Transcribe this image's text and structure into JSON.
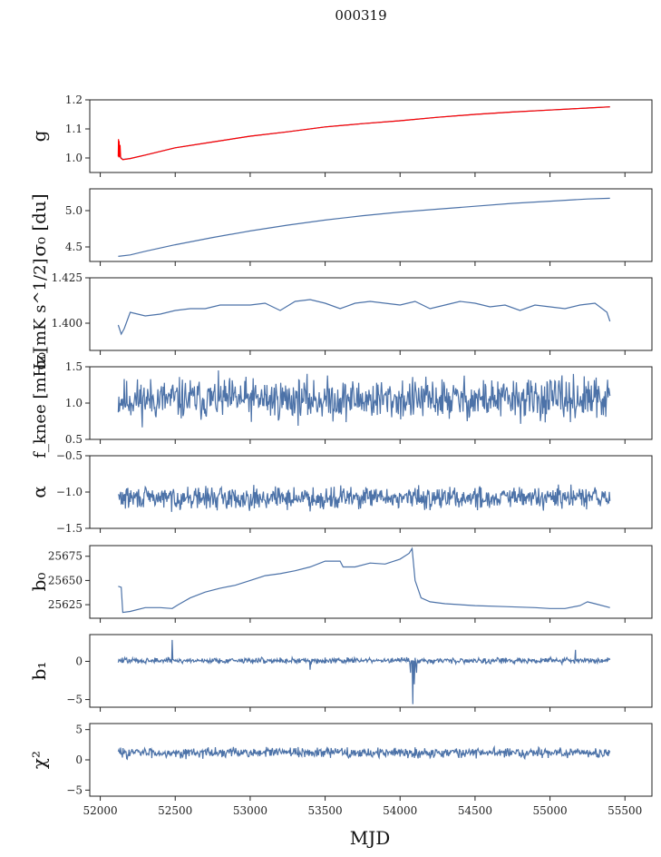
{
  "figure": {
    "title": "000319",
    "xlabel": "MJD"
  },
  "chart_data": [
    {
      "type": "line",
      "panel": "g",
      "ylabel": "g",
      "xlim": [
        51930,
        55680
      ],
      "ylim": [
        0.95,
        1.2
      ],
      "yticks": [
        "1.0",
        "1.1",
        "1.2"
      ],
      "ytick_values": [
        1.0,
        1.1,
        1.2
      ],
      "series": [
        {
          "color": "#4c72a8",
          "x": [
            52120,
            52150,
            52200,
            52300,
            52500,
            52750,
            53000,
            53250,
            53500,
            53750,
            54000,
            54250,
            54500,
            54750,
            55000,
            55250,
            55400
          ],
          "y": [
            1.01,
            0.995,
            0.998,
            1.01,
            1.035,
            1.055,
            1.075,
            1.09,
            1.107,
            1.118,
            1.128,
            1.14,
            1.15,
            1.158,
            1.165,
            1.172,
            1.176
          ]
        },
        {
          "color": "#ff0000",
          "x": [
            52120,
            52122,
            52124,
            52126,
            52128,
            52132,
            52136,
            52140,
            52150,
            52200,
            52300,
            52500,
            52750,
            53000,
            53250,
            53500,
            53750,
            54000,
            54250,
            54500,
            54750,
            55000,
            55250,
            55400
          ],
          "y": [
            1.005,
            1.065,
            1.002,
            1.058,
            1.004,
            1.045,
            1.0,
            0.998,
            0.994,
            0.998,
            1.01,
            1.035,
            1.055,
            1.075,
            1.09,
            1.107,
            1.118,
            1.128,
            1.14,
            1.15,
            1.158,
            1.165,
            1.172,
            1.176
          ]
        }
      ]
    },
    {
      "type": "line",
      "panel": "sigma0_du",
      "ylabel": "σ₀ [du]",
      "xlim": [
        51930,
        55680
      ],
      "ylim": [
        4.3,
        5.3
      ],
      "yticks": [
        "4.5",
        "5.0"
      ],
      "ytick_values": [
        4.5,
        5.0
      ],
      "series": [
        {
          "color": "#4c72a8",
          "x": [
            52120,
            52200,
            52300,
            52500,
            52750,
            53000,
            53250,
            53500,
            53750,
            54000,
            54250,
            54500,
            54750,
            55000,
            55250,
            55400
          ],
          "y": [
            4.37,
            4.39,
            4.44,
            4.53,
            4.63,
            4.72,
            4.8,
            4.87,
            4.93,
            4.98,
            5.02,
            5.06,
            5.1,
            5.13,
            5.16,
            5.17
          ]
        }
      ]
    },
    {
      "type": "line",
      "panel": "sigma0_mK",
      "ylabel": "σ₀[mK s^1/2]",
      "xlim": [
        51930,
        55680
      ],
      "ylim": [
        1.385,
        1.425
      ],
      "yticks": [
        "1.400",
        "1.425"
      ],
      "ytick_values": [
        1.4,
        1.425
      ],
      "series": [
        {
          "color": "#4c72a8",
          "x": [
            52120,
            52140,
            52160,
            52200,
            52300,
            52400,
            52500,
            52600,
            52700,
            52800,
            52900,
            53000,
            53100,
            53200,
            53300,
            53400,
            53500,
            53600,
            53700,
            53800,
            53900,
            54000,
            54100,
            54200,
            54300,
            54400,
            54500,
            54600,
            54700,
            54800,
            54900,
            55000,
            55100,
            55200,
            55300,
            55380,
            55400
          ],
          "y": [
            1.399,
            1.394,
            1.397,
            1.406,
            1.404,
            1.405,
            1.407,
            1.408,
            1.408,
            1.41,
            1.41,
            1.41,
            1.411,
            1.407,
            1.412,
            1.413,
            1.411,
            1.408,
            1.411,
            1.412,
            1.411,
            1.41,
            1.412,
            1.408,
            1.41,
            1.412,
            1.411,
            1.409,
            1.41,
            1.407,
            1.41,
            1.409,
            1.408,
            1.41,
            1.411,
            1.406,
            1.401
          ]
        }
      ]
    },
    {
      "type": "line",
      "panel": "fknee",
      "ylabel": "f_knee [mHz]",
      "xlim": [
        51930,
        55680
      ],
      "ylim": [
        0.5,
        1.5
      ],
      "yticks": [
        "0.5",
        "1.0",
        "1.5"
      ],
      "ytick_values": [
        0.5,
        1.0,
        1.5
      ],
      "noise": {
        "seed": 11,
        "step": 4,
        "mean": 1.05,
        "amp": 0.42,
        "clip": [
          0.55,
          1.5
        ]
      },
      "series": [
        {
          "color": "#4c72a8",
          "x": [
            52120,
            55400
          ],
          "y": [
            1.05,
            1.05
          ]
        }
      ]
    },
    {
      "type": "line",
      "panel": "alpha",
      "ylabel": "α",
      "xlim": [
        51930,
        55680
      ],
      "ylim": [
        -1.5,
        -0.5
      ],
      "yticks": [
        "−1.5",
        "−1.0",
        "−0.5"
      ],
      "ytick_values": [
        -1.5,
        -1.0,
        -0.5
      ],
      "noise": {
        "seed": 29,
        "step": 4,
        "mean": -1.08,
        "amp": 0.22,
        "clip": [
          -1.45,
          -0.75
        ]
      },
      "series": [
        {
          "color": "#4c72a8",
          "x": [
            52120,
            55400
          ],
          "y": [
            -1.08,
            -1.08
          ]
        }
      ]
    },
    {
      "type": "line",
      "panel": "b0",
      "ylabel": "b₀",
      "xlim": [
        51930,
        55680
      ],
      "ylim": [
        25611,
        25686
      ],
      "yticks": [
        "25625",
        "25650",
        "25675"
      ],
      "ytick_values": [
        25625,
        25650,
        25675
      ],
      "series": [
        {
          "color": "#4c72a8",
          "x": [
            52120,
            52140,
            52150,
            52200,
            52300,
            52400,
            52480,
            52520,
            52600,
            52700,
            52800,
            52900,
            53000,
            53100,
            53200,
            53300,
            53400,
            53500,
            53600,
            53620,
            53700,
            53800,
            53900,
            54000,
            54060,
            54080,
            54100,
            54140,
            54200,
            54300,
            54500,
            54700,
            54900,
            55000,
            55100,
            55200,
            55250,
            55300,
            55400
          ],
          "y": [
            25644,
            25643,
            25617,
            25618,
            25622,
            25622,
            25621,
            25625,
            25632,
            25638,
            25642,
            25645,
            25650,
            25655,
            25657,
            25660,
            25664,
            25670,
            25670,
            25664,
            25664,
            25668,
            25667,
            25672,
            25678,
            25683,
            25650,
            25632,
            25628,
            25626,
            25624,
            25623,
            25622,
            25621,
            25621,
            25624,
            25628,
            25626,
            25622
          ]
        }
      ]
    },
    {
      "type": "line",
      "panel": "b1",
      "ylabel": "b₁",
      "xlim": [
        51930,
        55680
      ],
      "ylim": [
        -6,
        3.5
      ],
      "yticks": [
        "−5",
        "0"
      ],
      "ytick_values": [
        -5,
        0
      ],
      "noise": {
        "seed": 47,
        "step": 4,
        "mean": 0.1,
        "amp": 0.55,
        "clip": [
          -1.0,
          1.2
        ]
      },
      "series": [
        {
          "color": "#4c72a8",
          "x": [
            52120,
            55400
          ],
          "y": [
            0.1,
            0.1
          ]
        }
      ],
      "spikes": [
        {
          "x": 52480,
          "y": 2.8
        },
        {
          "x": 53400,
          "y": -1.1
        },
        {
          "x": 54070,
          "y": -1.5
        },
        {
          "x": 54085,
          "y": -5.6
        },
        {
          "x": 54095,
          "y": -3.0
        },
        {
          "x": 54110,
          "y": -1.5
        },
        {
          "x": 55170,
          "y": 1.5
        }
      ]
    },
    {
      "type": "line",
      "panel": "chi2",
      "ylabel": "χ²",
      "xlim": [
        51930,
        55680
      ],
      "ylim": [
        -6,
        6
      ],
      "yticks": [
        "−5",
        "0",
        "5"
      ],
      "ytick_values": [
        -5,
        0,
        5
      ],
      "xticks": [
        "52000",
        "52500",
        "53000",
        "53500",
        "54000",
        "54500",
        "55000",
        "55500"
      ],
      "xtick_values": [
        52000,
        52500,
        53000,
        53500,
        54000,
        54500,
        55000,
        55500
      ],
      "noise": {
        "seed": 83,
        "step": 4,
        "mean": 1.2,
        "amp": 1.2,
        "clip": [
          -1.5,
          4.2
        ]
      },
      "series": [
        {
          "color": "#4c72a8",
          "x": [
            52120,
            55400
          ],
          "y": [
            1.2,
            1.2
          ]
        }
      ]
    }
  ]
}
